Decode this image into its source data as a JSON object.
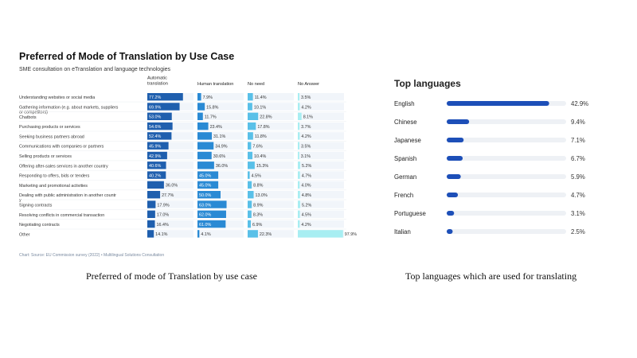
{
  "captions": {
    "left": "Preferred of mode of Translation by use case",
    "right": "Top languages which are used for translating"
  },
  "chart_data": [
    {
      "type": "bar",
      "title": "Preferred of Mode of Translation by Use Case",
      "subtitle": "SME consultation on eTranslation and language technologies",
      "source": "Chart: Source: EU Commission survey (2022) • Multilingual Solutions Consultation",
      "colors": [
        "#1f5fae",
        "#2a8ad4",
        "#59c0e8",
        "#a8eef2"
      ],
      "categories": [
        "Understanding websites or social media",
        "Gathering information (e.g. about markets, suppliers or competitors)",
        "Chatbots",
        "Purchasing products or services",
        "Seeking business partners abroad",
        "Communications with companies or partners",
        "Selling products or services",
        "Offering after-sales services in another country",
        "Responding to offers, bids or tenders",
        "Marketing and promotional activities",
        "Dealing with public administration in another country",
        "Signing contracts",
        "Resolving conflicts in commercial transaction",
        "Negotiating contracts",
        "Other"
      ],
      "series": [
        {
          "name": "Automatic translation",
          "values": [
            77.2,
            69.9,
            53.0,
            54.6,
            52.4,
            45.9,
            42.9,
            40.6,
            40.2,
            36.0,
            27.7,
            17.9,
            17.0,
            16.4,
            14.1
          ],
          "labels": [
            "77.2%",
            "69.9%",
            "53.0%",
            "54.6%",
            "52.4%",
            "45.9%",
            "42.9%",
            "40.6%",
            "40.2%",
            "36.0%",
            "27.7%",
            "17.9%",
            "17.0%",
            "16.4%",
            "14.1%"
          ]
        },
        {
          "name": "Human translation",
          "values": [
            7.9,
            15.8,
            11.7,
            23.4,
            31.1,
            34.9,
            30.6,
            36.0,
            45.0,
            45.0,
            50.0,
            63.0,
            62.0,
            61.0,
            4.1
          ],
          "labels": [
            "7.9%",
            "15.8%",
            "11.7%",
            "23.4%",
            "31.1%",
            "34.9%",
            "30.6%",
            "36.0%",
            "45.0%",
            "45.0%",
            "50.0%",
            "63.0%",
            "62.0%",
            "61.0%",
            "4.1%"
          ]
        },
        {
          "name": "No need",
          "values": [
            11.4,
            10.1,
            22.8,
            17.8,
            11.8,
            7.6,
            10.4,
            15.3,
            4.5,
            8.8,
            13.0,
            8.9,
            8.3,
            6.9,
            22.3
          ],
          "labels": [
            "11.4%",
            "10.1%",
            "22.8%",
            "17.8%",
            "11.8%",
            "7.6%",
            "10.4%",
            "15.3%",
            "4.5%",
            "8.8%",
            "13.0%",
            "8.9%",
            "8.3%",
            "6.9%",
            "22.3%"
          ]
        },
        {
          "name": "No Answer",
          "values": [
            3.5,
            4.2,
            8.1,
            3.7,
            4.2,
            3.5,
            3.1,
            5.2,
            4.7,
            4.0,
            4.8,
            5.2,
            4.5,
            4.2,
            97.9
          ],
          "labels": [
            "3.5%",
            "4.2%",
            "8.1%",
            "3.7%",
            "4.2%",
            "3.5%",
            "3.1%",
            "5.2%",
            "4.7%",
            "4.0%",
            "4.8%",
            "5.2%",
            "4.5%",
            "4.2%",
            "97.9%"
          ]
        }
      ],
      "xlim": [
        0,
        100
      ]
    },
    {
      "type": "bar",
      "title": "Top languages",
      "categories": [
        "English",
        "Chinese",
        "Japanese",
        "Spanish",
        "German",
        "French",
        "Portuguese",
        "Italian"
      ],
      "values": [
        42.9,
        9.4,
        7.1,
        6.7,
        5.9,
        4.7,
        3.1,
        2.5
      ],
      "labels": [
        "42.9%",
        "9.4%",
        "7.1%",
        "6.7%",
        "5.9%",
        "4.7%",
        "3.1%",
        "2.5%"
      ],
      "xlim": [
        0,
        50
      ],
      "color": "#1d4fb8",
      "track_color": "#eef1f5"
    }
  ]
}
